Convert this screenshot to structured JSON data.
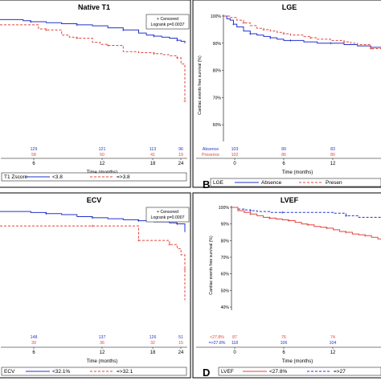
{
  "chart_data": [
    {
      "panel": "A",
      "type": "line",
      "title": "Native T1",
      "xlabel": "Time (months)",
      "ylabel": "",
      "x_ticks": [
        "6",
        "12",
        "18",
        "24"
      ],
      "xlim": [
        0,
        24
      ],
      "ylim": [
        40,
        100
      ],
      "legend_box": [
        "+ Censored",
        "Logrank p=0.0037"
      ],
      "legend_title": "T1 Zscore",
      "colors": {
        "blue": "#2233cc",
        "red": "#e0463a"
      },
      "series": [
        {
          "name": "<3.8",
          "color": "#2233cc",
          "dashed": false,
          "x": [
            0,
            2,
            3,
            4,
            6,
            8,
            10,
            12,
            14,
            16,
            18,
            19,
            20,
            21,
            22,
            23,
            23.5,
            24
          ],
          "y": [
            97.5,
            97.5,
            97,
            96.5,
            96,
            95.5,
            95,
            94.5,
            93.5,
            92.5,
            91,
            90,
            89.5,
            89,
            88.5,
            87.5,
            87,
            86
          ]
        },
        {
          "name": "=>3.8",
          "color": "#e0463a",
          "dashed": true,
          "x": [
            0,
            3,
            5,
            6,
            8,
            9,
            10,
            12,
            13,
            14,
            16,
            18,
            20,
            21,
            22,
            23,
            23.5,
            24,
            24
          ],
          "y": [
            95,
            95,
            93,
            92.5,
            90,
            89,
            88.5,
            86.5,
            85.5,
            85,
            82,
            81.5,
            81,
            80.5,
            80,
            79,
            76,
            72,
            58
          ]
        }
      ],
      "risk_table": [
        {
          "label": "",
          "counts": [
            "129",
            "121",
            "113",
            "96"
          ],
          "color": "#2233cc"
        },
        {
          "label": "",
          "counts": [
            "58",
            "50",
            "41",
            "19"
          ],
          "color": "#e0463a"
        }
      ],
      "legend_items": [
        "<3.8",
        "=>3.8"
      ]
    },
    {
      "panel": "B",
      "type": "line",
      "title": "LGE",
      "ylabel": "Cardiac events free survival (%)",
      "xlabel": "Time (months)",
      "y_ticks": [
        "100%",
        "90%",
        "80%",
        "70%",
        "60%"
      ],
      "x_ticks": [
        "0",
        "6",
        "12"
      ],
      "xlim": [
        0,
        24
      ],
      "ylim": [
        55,
        100
      ],
      "legend_title": "LGE",
      "series": [
        {
          "name": "Absence",
          "color": "#2233cc",
          "dashed": false,
          "x": [
            0,
            0.5,
            1,
            1.5,
            2,
            3,
            4,
            5,
            6,
            7,
            8,
            9,
            10,
            12,
            14,
            16,
            18,
            20,
            22,
            24
          ],
          "y": [
            100,
            99,
            98.5,
            97,
            96,
            94.5,
            93.5,
            93,
            92.5,
            92,
            91.5,
            91,
            91,
            90.5,
            90,
            90,
            89.5,
            89,
            88.5,
            88
          ]
        },
        {
          "name": "Presence",
          "color": "#e0463a",
          "dashed": true,
          "x": [
            0,
            1,
            2,
            3,
            4,
            5,
            6,
            7,
            8,
            9,
            10,
            12,
            13,
            14,
            16,
            18,
            19,
            20,
            22,
            24
          ],
          "y": [
            100,
            99.5,
            98.5,
            97.5,
            96.5,
            95.5,
            95,
            94.5,
            94,
            93.5,
            93,
            92.5,
            92,
            91.5,
            91,
            90.5,
            90,
            89.5,
            88,
            86
          ]
        }
      ],
      "risk_table": [
        {
          "label": "Absence",
          "counts": [
            "103",
            "89",
            "83"
          ],
          "color": "#2233cc"
        },
        {
          "label": "Presence",
          "counts": [
            "102",
            "86",
            "80"
          ],
          "color": "#e0463a"
        }
      ],
      "legend_items": [
        "Absence",
        "Presen"
      ]
    },
    {
      "panel": "C",
      "type": "line",
      "title": "ECV",
      "xlabel": "Time (months)",
      "x_ticks": [
        "6",
        "12",
        "18",
        "24"
      ],
      "xlim": [
        0,
        24
      ],
      "ylim": [
        40,
        100
      ],
      "legend_box": [
        "+ Censored",
        "Logrank p=0.0007"
      ],
      "legend_title": "ECV",
      "series": [
        {
          "name": "<32.1%",
          "color": "#2233cc",
          "dashed": false,
          "x": [
            0,
            2,
            4,
            6,
            8,
            10,
            12,
            14,
            16,
            18,
            20,
            22,
            23,
            24
          ],
          "y": [
            98,
            98,
            97.5,
            97,
            96.5,
            95.5,
            95,
            94.5,
            94,
            93.5,
            93,
            92.5,
            92,
            88
          ]
        },
        {
          "name": "=>32.1",
          "color": "#e0463a",
          "dashed": true,
          "x": [
            0,
            4,
            8,
            12,
            15,
            17,
            18,
            20,
            21,
            22,
            23,
            23.5,
            24,
            24
          ],
          "y": [
            91,
            91,
            91,
            91,
            91,
            91,
            84,
            84,
            84,
            82,
            80,
            77,
            70,
            55
          ]
        }
      ],
      "risk_table": [
        {
          "label": "",
          "counts": [
            "148",
            "137",
            "126",
            "51"
          ],
          "color": "#2233cc"
        },
        {
          "label": "",
          "counts": [
            "39",
            "36",
            "32",
            "15"
          ],
          "color": "#e0463a"
        }
      ],
      "legend_items": [
        "<32.1%",
        "=>32.1"
      ]
    },
    {
      "panel": "D",
      "type": "line",
      "title": "LVEF",
      "ylabel": "Cardiac events free survival (%)",
      "xlabel": "Time (months)",
      "y_ticks": [
        "100%",
        "90%",
        "80%",
        "70%",
        "60%",
        "50%",
        "40%"
      ],
      "x_ticks": [
        "0",
        "6",
        "12"
      ],
      "xlim": [
        0,
        24
      ],
      "ylim": [
        40,
        100
      ],
      "legend_title": "LVEF",
      "series": [
        {
          "name": "=>27.8%",
          "color": "#2233cc",
          "dashed": true,
          "x": [
            0,
            1,
            2,
            3,
            4,
            6,
            8,
            12,
            16,
            18,
            20,
            22,
            24
          ],
          "y": [
            100,
            99,
            98.5,
            98,
            97.5,
            97,
            97,
            97,
            96.5,
            95,
            94,
            94,
            94
          ]
        },
        {
          "name": "<27.8%",
          "color": "#e0463a",
          "dashed": false,
          "x": [
            0,
            1,
            2,
            3,
            4,
            5,
            6,
            7,
            8,
            9,
            10,
            11,
            12,
            13,
            14,
            15,
            16,
            17,
            18,
            19,
            20,
            21,
            22,
            23,
            24
          ],
          "y": [
            100,
            98,
            97,
            96,
            95,
            94,
            93.5,
            93,
            92.5,
            92,
            91,
            90,
            89.5,
            88.5,
            88,
            87.5,
            86.5,
            85.5,
            85,
            84,
            83.5,
            83,
            82,
            81,
            80
          ]
        }
      ],
      "risk_table": [
        {
          "label": "<27.8%",
          "counts": [
            "87",
            "76",
            "74"
          ],
          "color": "#e0463a"
        },
        {
          "label": "=>27.8%",
          "counts": [
            "118",
            "106",
            "104"
          ],
          "color": "#2233cc"
        }
      ],
      "legend_items": [
        "<27.8%",
        "=>27"
      ]
    }
  ]
}
